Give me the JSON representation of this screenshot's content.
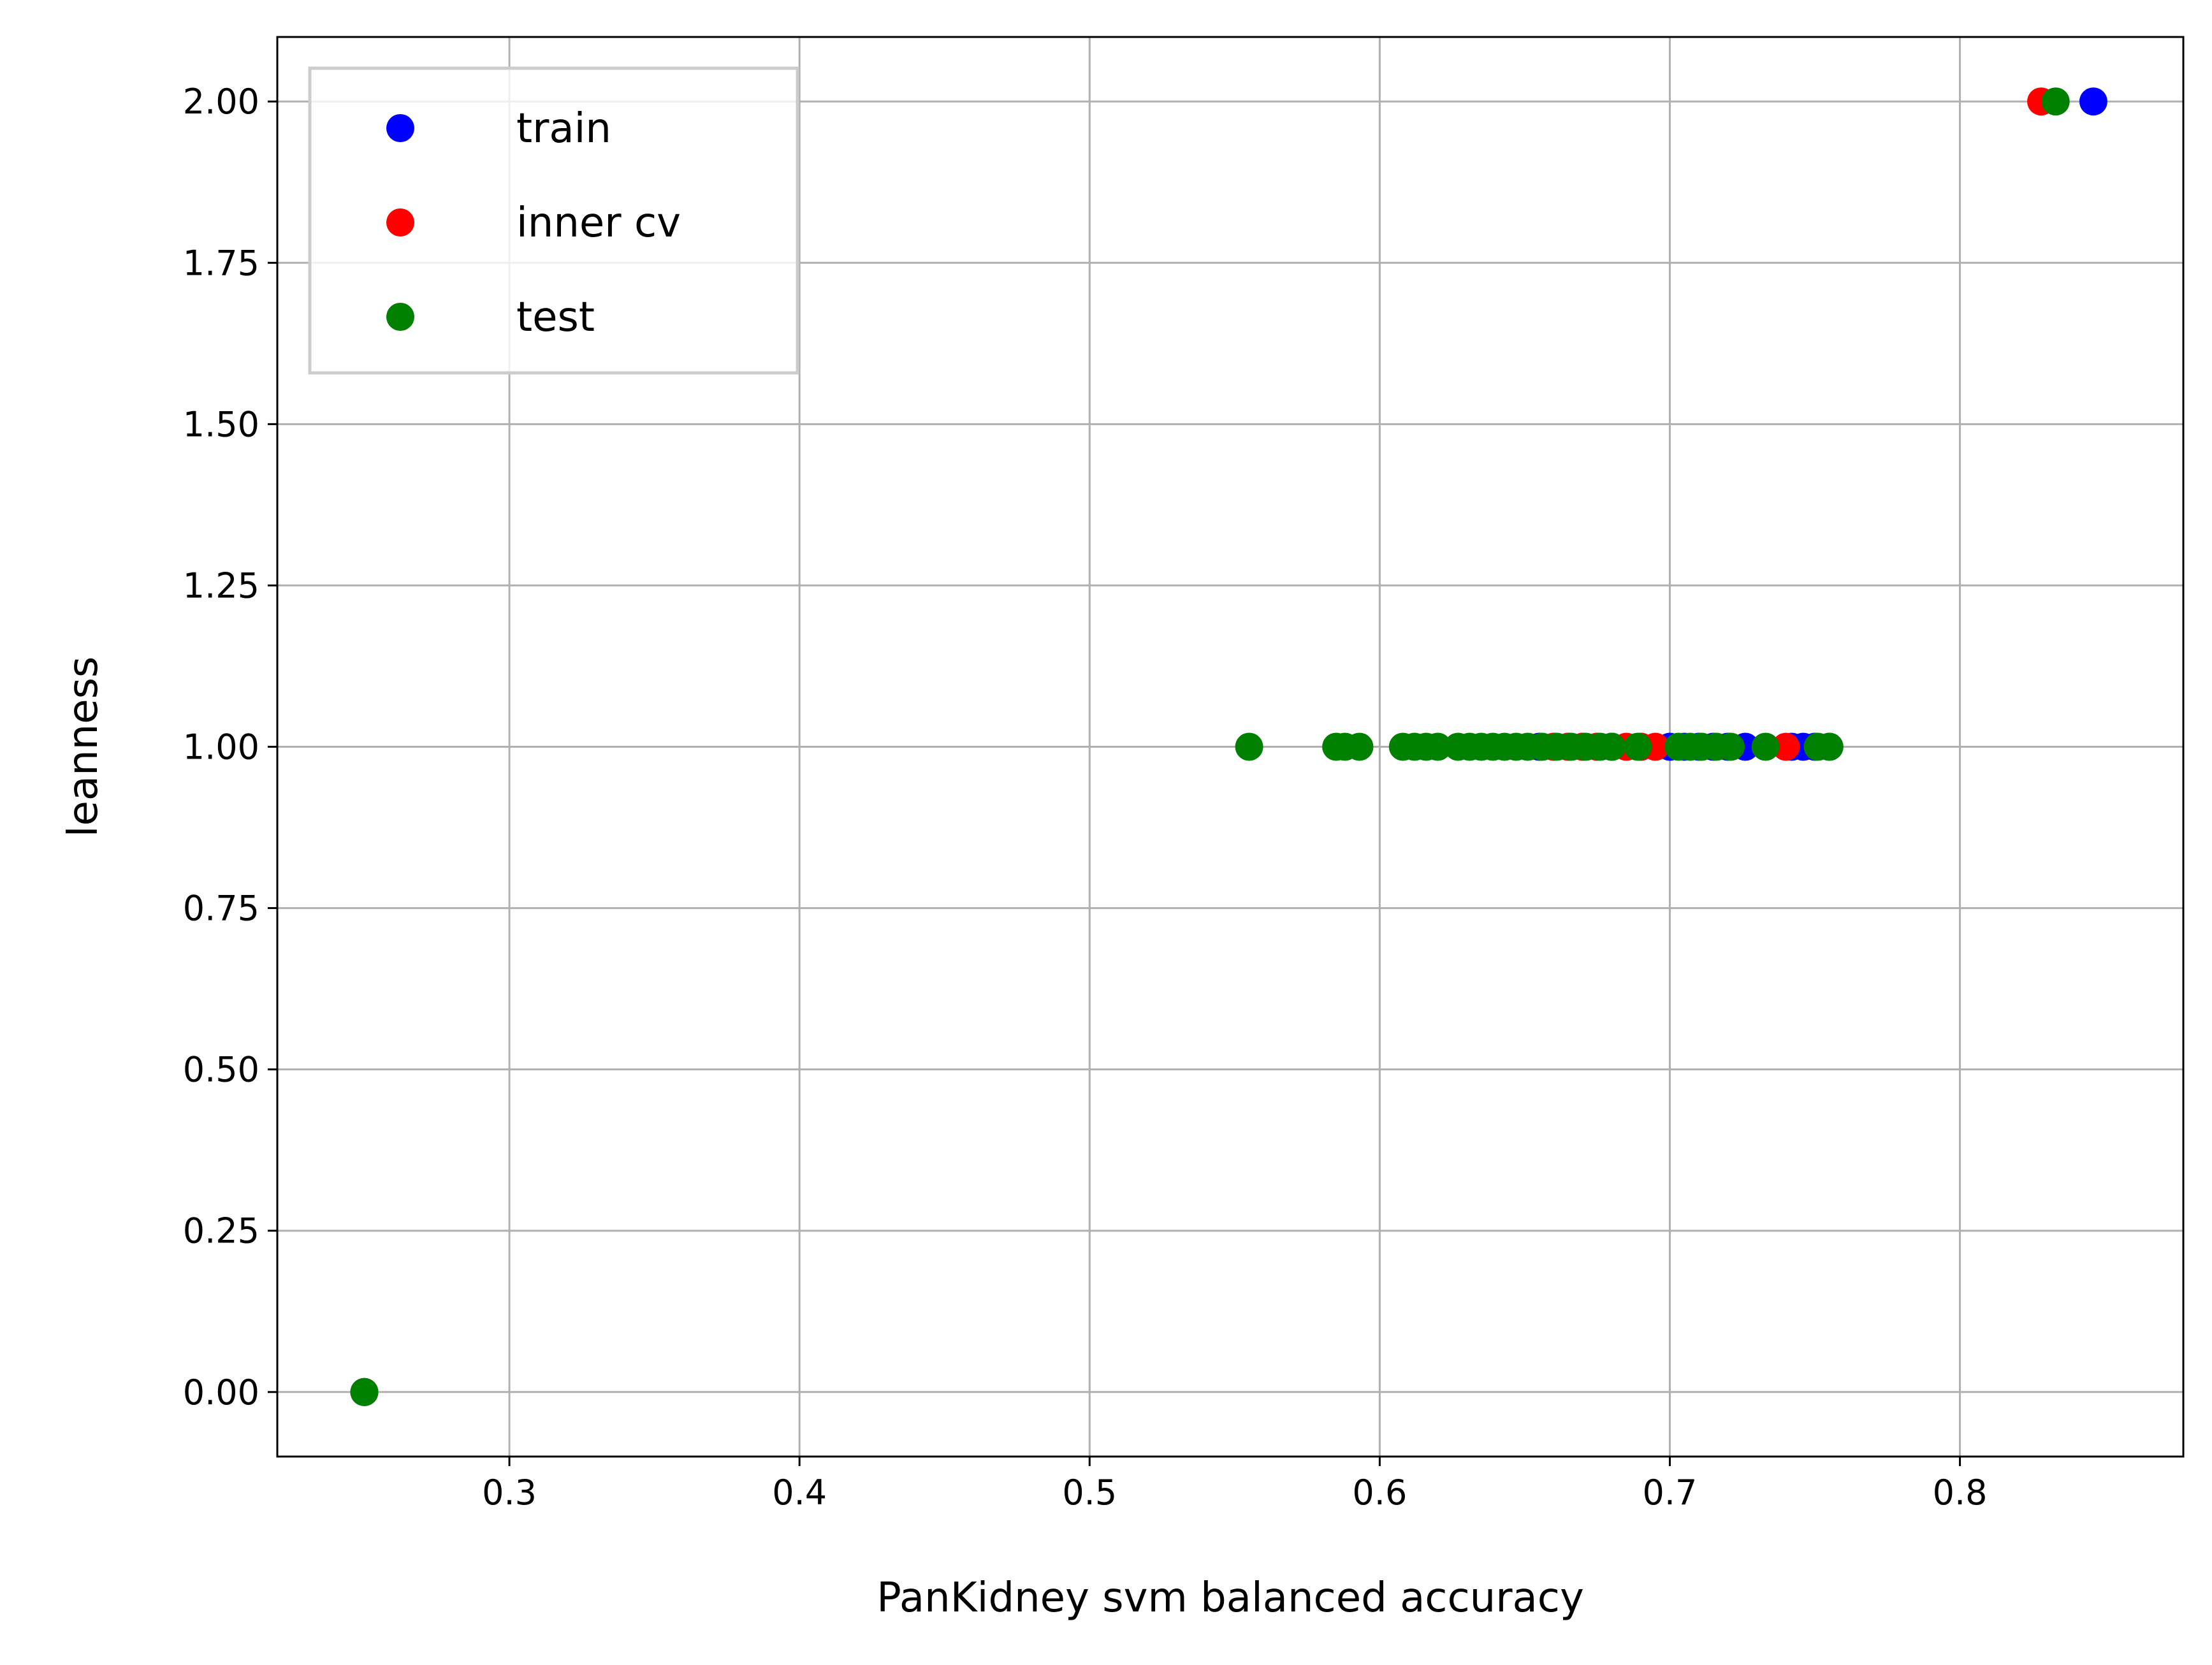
{
  "chart_data": {
    "type": "scatter",
    "title": "",
    "xlabel": "PanKidney svm balanced accuracy",
    "ylabel": "leanness",
    "xlim": [
      0.22,
      0.877
    ],
    "ylim": [
      -0.1,
      2.1
    ],
    "xticks": [
      0.3,
      0.4,
      0.5,
      0.6,
      0.7,
      0.8
    ],
    "xtick_labels": [
      "0.3",
      "0.4",
      "0.5",
      "0.6",
      "0.7",
      "0.8"
    ],
    "yticks": [
      0.0,
      0.25,
      0.5,
      0.75,
      1.0,
      1.25,
      1.5,
      1.75,
      2.0
    ],
    "ytick_labels": [
      "0.00",
      "0.25",
      "0.50",
      "0.75",
      "1.00",
      "1.25",
      "1.50",
      "1.75",
      "2.00"
    ],
    "grid": true,
    "legend_position": "top-left",
    "series": [
      {
        "name": "train",
        "color": "#0000ff",
        "points": [
          [
            0.25,
            0.0
          ],
          [
            0.655,
            1.0
          ],
          [
            0.66,
            1.0
          ],
          [
            0.665,
            1.0
          ],
          [
            0.67,
            1.0
          ],
          [
            0.675,
            1.0
          ],
          [
            0.68,
            1.0
          ],
          [
            0.69,
            1.0
          ],
          [
            0.7,
            1.0
          ],
          [
            0.705,
            1.0
          ],
          [
            0.71,
            1.0
          ],
          [
            0.715,
            1.0
          ],
          [
            0.72,
            1.0
          ],
          [
            0.726,
            1.0
          ],
          [
            0.742,
            1.0
          ],
          [
            0.746,
            1.0
          ],
          [
            0.75,
            1.0
          ],
          [
            0.755,
            1.0
          ],
          [
            0.846,
            2.0
          ]
        ]
      },
      {
        "name": "inner cv",
        "color": "#ff0000",
        "points": [
          [
            0.25,
            0.0
          ],
          [
            0.66,
            1.0
          ],
          [
            0.665,
            1.0
          ],
          [
            0.67,
            1.0
          ],
          [
            0.675,
            1.0
          ],
          [
            0.68,
            1.0
          ],
          [
            0.685,
            1.0
          ],
          [
            0.69,
            1.0
          ],
          [
            0.695,
            1.0
          ],
          [
            0.74,
            1.0
          ],
          [
            0.828,
            2.0
          ]
        ]
      },
      {
        "name": "test",
        "color": "#008000",
        "points": [
          [
            0.25,
            0.0
          ],
          [
            0.555,
            1.0
          ],
          [
            0.585,
            1.0
          ],
          [
            0.588,
            1.0
          ],
          [
            0.593,
            1.0
          ],
          [
            0.608,
            1.0
          ],
          [
            0.612,
            1.0
          ],
          [
            0.616,
            1.0
          ],
          [
            0.62,
            1.0
          ],
          [
            0.627,
            1.0
          ],
          [
            0.631,
            1.0
          ],
          [
            0.635,
            1.0
          ],
          [
            0.639,
            1.0
          ],
          [
            0.643,
            1.0
          ],
          [
            0.647,
            1.0
          ],
          [
            0.651,
            1.0
          ],
          [
            0.656,
            1.0
          ],
          [
            0.661,
            1.0
          ],
          [
            0.666,
            1.0
          ],
          [
            0.671,
            1.0
          ],
          [
            0.676,
            1.0
          ],
          [
            0.68,
            1.0
          ],
          [
            0.689,
            1.0
          ],
          [
            0.703,
            1.0
          ],
          [
            0.707,
            1.0
          ],
          [
            0.711,
            1.0
          ],
          [
            0.716,
            1.0
          ],
          [
            0.721,
            1.0
          ],
          [
            0.733,
            1.0
          ],
          [
            0.751,
            1.0
          ],
          [
            0.755,
            1.0
          ],
          [
            0.833,
            2.0
          ]
        ]
      }
    ]
  }
}
